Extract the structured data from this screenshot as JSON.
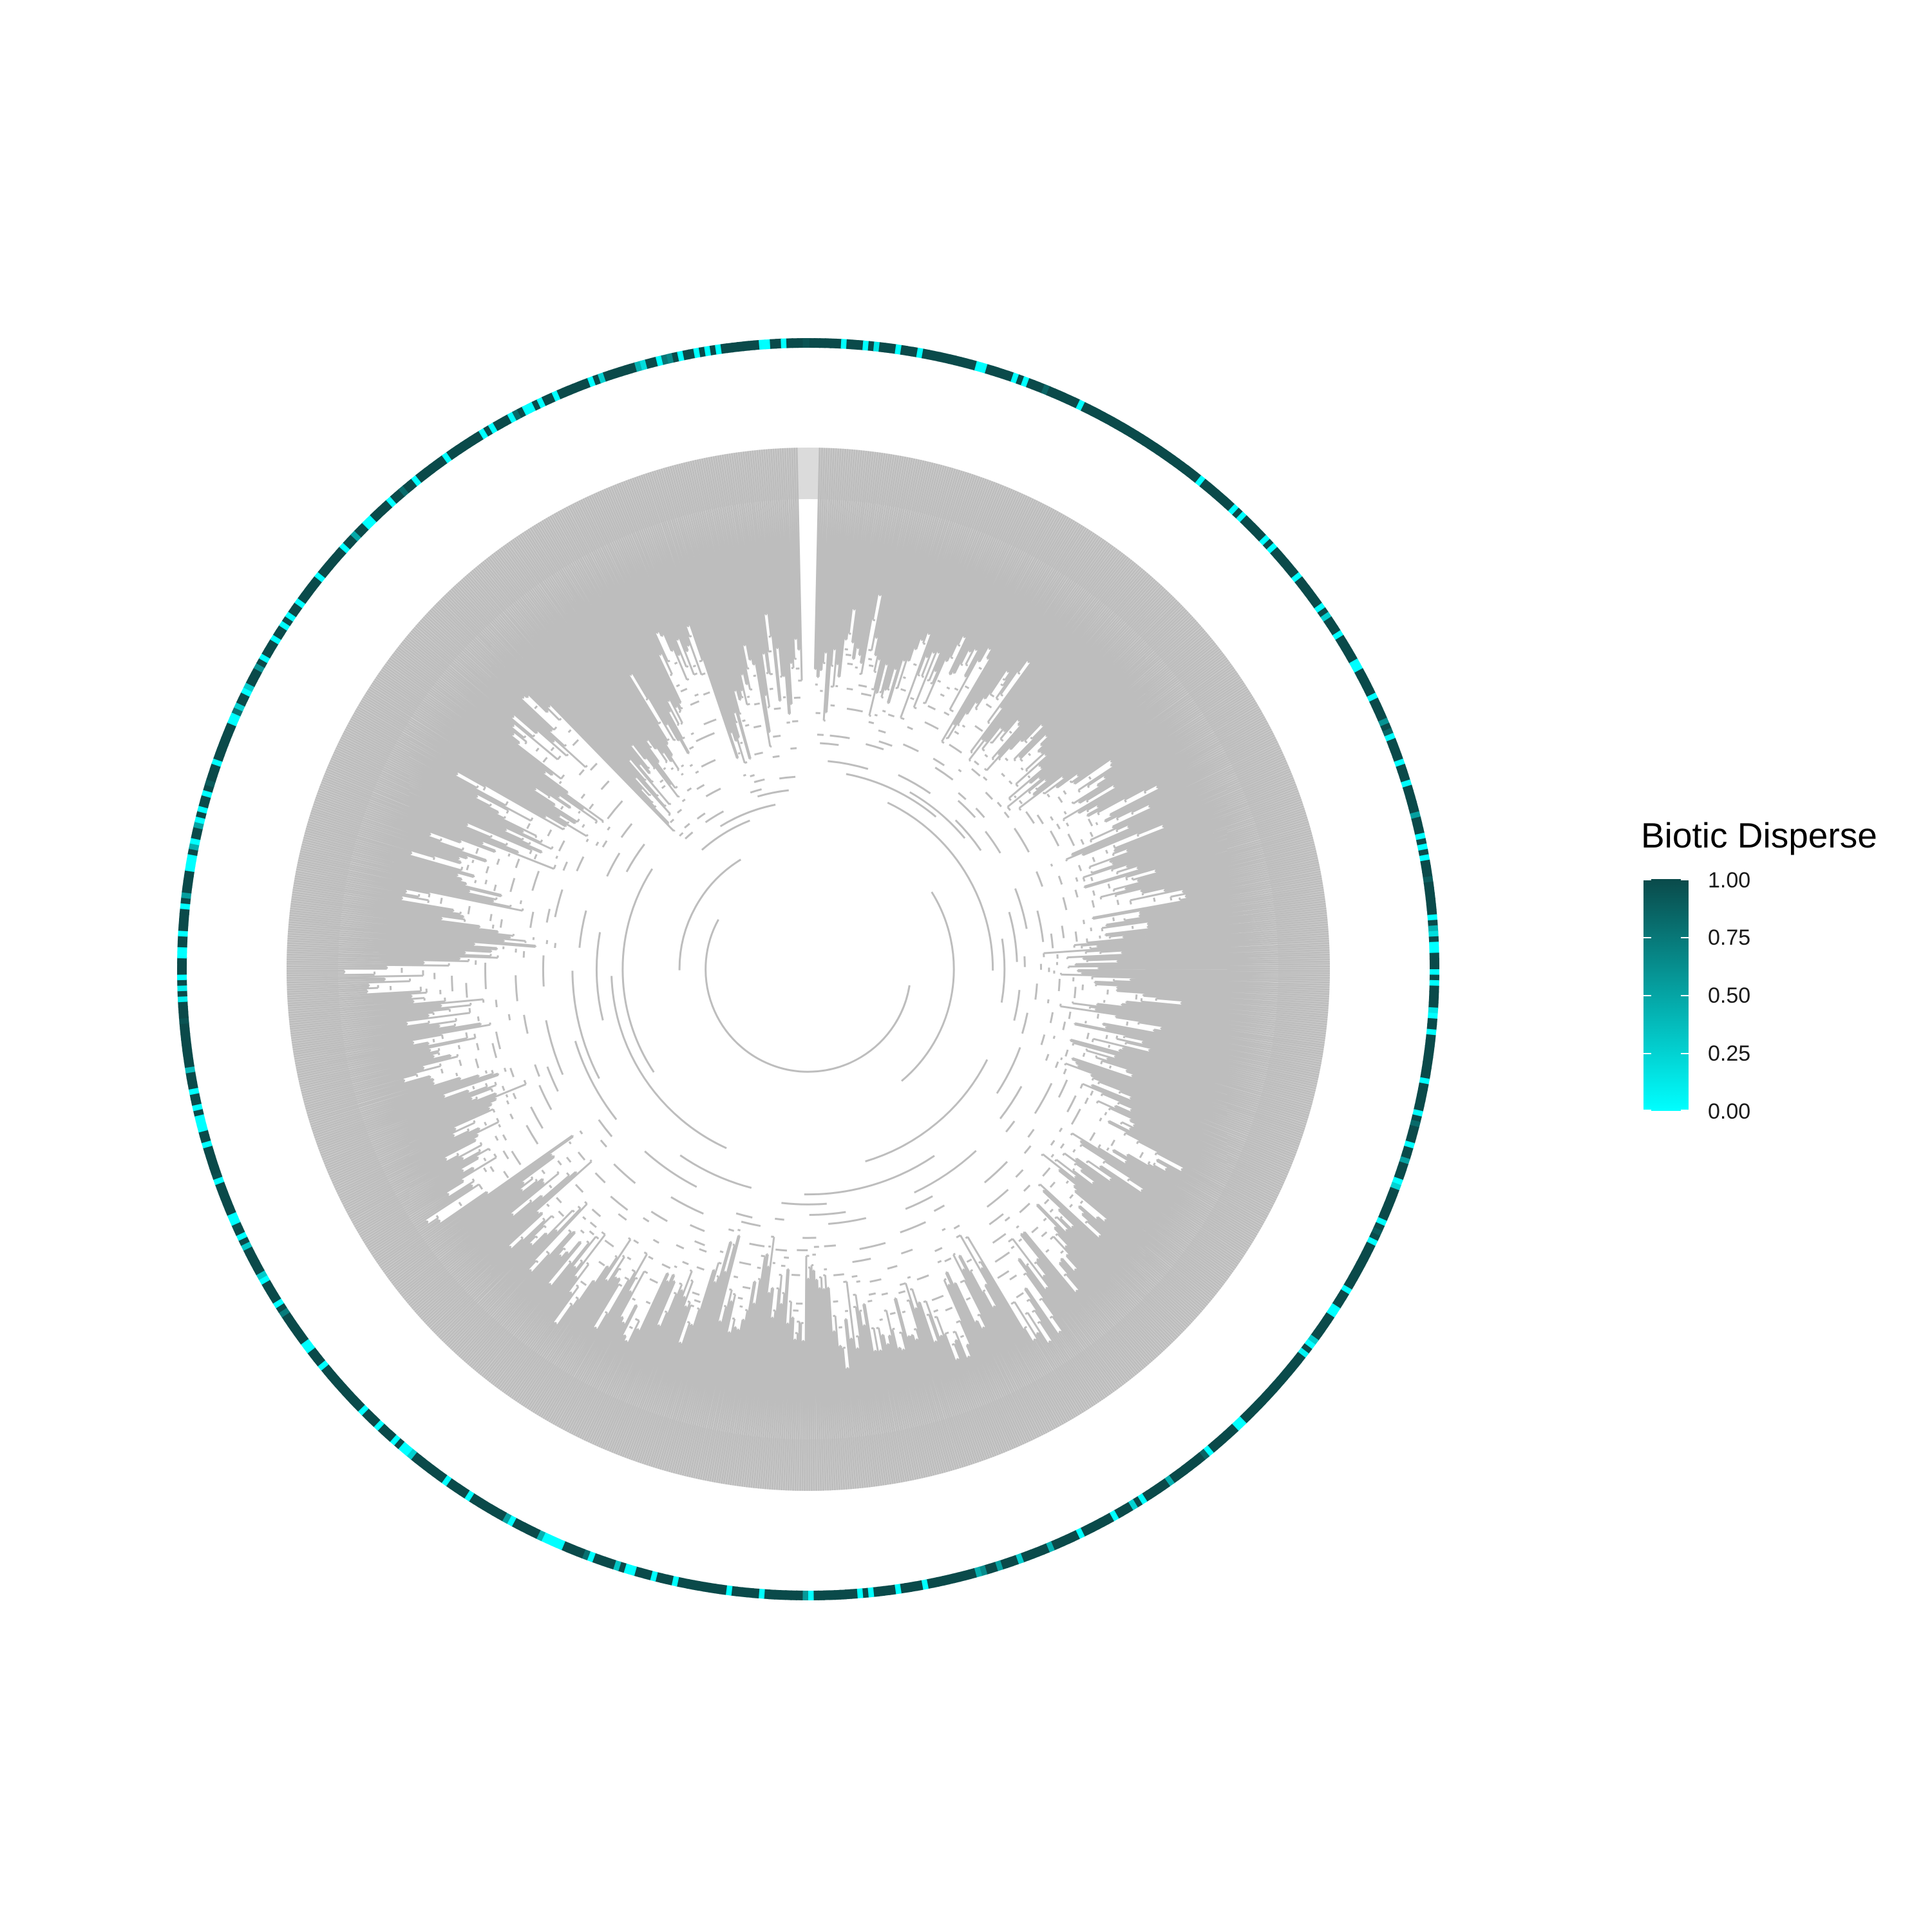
{
  "legend": {
    "title": "Biotic Disperse",
    "labels": [
      "1.00",
      "0.75",
      "0.50",
      "0.25",
      "0.00"
    ],
    "values": [
      1.0,
      0.75,
      0.5,
      0.25,
      0.0
    ],
    "low_color": "#00ffff",
    "high_color": "#0a4a4a"
  },
  "colors": {
    "branch": "#bdbdbd",
    "background": "#ffffff"
  },
  "tree": {
    "layout": "circular",
    "description_type": "phylogeny"
  }
}
